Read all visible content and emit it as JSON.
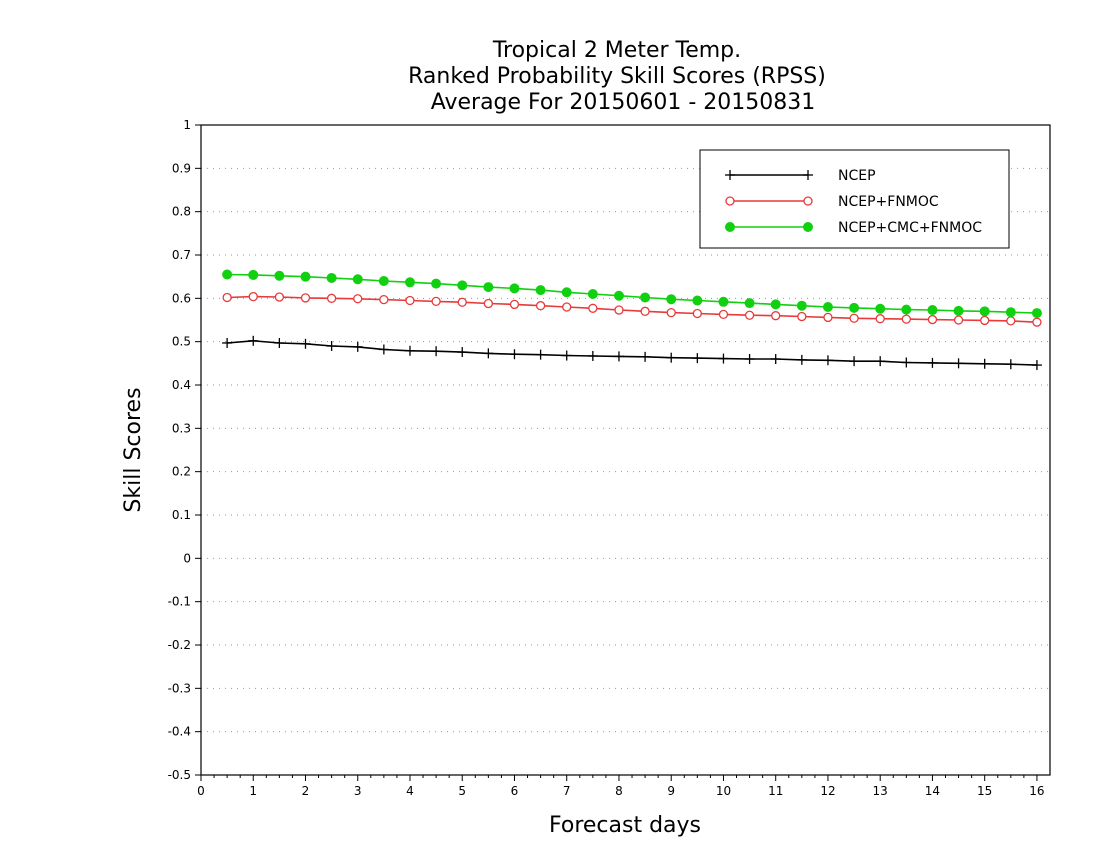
{
  "chart_data": {
    "type": "line",
    "title": [
      "Tropical 2 Meter Temp.",
      "Ranked Probability Skill Scores (RPSS)",
      "Average For 20150601 - 20150831"
    ],
    "xlabel": "Forecast days",
    "ylabel": "Skill Scores",
    "xlim": [
      0,
      16.25
    ],
    "ylim": [
      -0.5,
      1
    ],
    "x_ticks": [
      "0",
      "1",
      "2",
      "3",
      "4",
      "5",
      "6",
      "7",
      "8",
      "9",
      "10",
      "11",
      "12",
      "13",
      "14",
      "15",
      "16"
    ],
    "y_ticks": [
      "1",
      "0.9",
      "0.8",
      "0.7",
      "0.6",
      "0.5",
      "0.4",
      "0.3",
      "0.2",
      "0.1",
      "0",
      "-0.1",
      "-0.2",
      "-0.3",
      "-0.4",
      "-0.5"
    ],
    "grid": "horizontal-dotted",
    "legend_position": "top-right",
    "x": [
      0.5,
      1,
      1.5,
      2,
      2.5,
      3,
      3.5,
      4,
      4.5,
      5,
      5.5,
      6,
      6.5,
      7,
      7.5,
      8,
      8.5,
      9,
      9.5,
      10,
      10.5,
      11,
      11.5,
      12,
      12.5,
      13,
      13.5,
      14,
      14.5,
      15,
      15.5,
      16
    ],
    "series": [
      {
        "name": "NCEP",
        "color": "#000000",
        "marker": "plus",
        "values": [
          0.497,
          0.502,
          0.497,
          0.495,
          0.49,
          0.488,
          0.482,
          0.479,
          0.478,
          0.476,
          0.473,
          0.471,
          0.47,
          0.468,
          0.467,
          0.466,
          0.465,
          0.463,
          0.462,
          0.461,
          0.46,
          0.46,
          0.458,
          0.457,
          0.455,
          0.455,
          0.452,
          0.451,
          0.45,
          0.449,
          0.448,
          0.446
        ]
      },
      {
        "name": "NCEP+FNMOC",
        "color": "#e83a3a",
        "marker": "open-circle",
        "values": [
          0.602,
          0.604,
          0.603,
          0.601,
          0.6,
          0.599,
          0.597,
          0.595,
          0.593,
          0.591,
          0.588,
          0.586,
          0.583,
          0.58,
          0.577,
          0.573,
          0.57,
          0.567,
          0.565,
          0.563,
          0.561,
          0.56,
          0.558,
          0.556,
          0.554,
          0.553,
          0.552,
          0.551,
          0.55,
          0.549,
          0.548,
          0.545
        ]
      },
      {
        "name": "NCEP+CMC+FNMOC",
        "color": "#10d010",
        "marker": "filled-circle",
        "values": [
          0.655,
          0.654,
          0.652,
          0.65,
          0.647,
          0.644,
          0.64,
          0.637,
          0.634,
          0.63,
          0.626,
          0.623,
          0.619,
          0.614,
          0.61,
          0.606,
          0.602,
          0.598,
          0.595,
          0.592,
          0.589,
          0.586,
          0.583,
          0.58,
          0.578,
          0.576,
          0.574,
          0.573,
          0.571,
          0.57,
          0.568,
          0.566
        ]
      }
    ]
  }
}
